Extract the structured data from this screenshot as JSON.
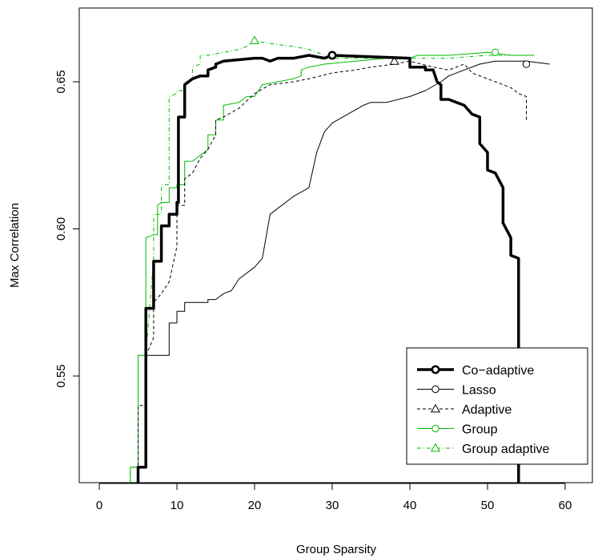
{
  "chart_data": {
    "type": "line",
    "title": "",
    "xlabel": "Group Sparsity",
    "ylabel": "Max Correlation",
    "xlim": [
      0,
      60
    ],
    "ylim": [
      0.515,
      0.677
    ],
    "xticks": [
      0,
      10,
      20,
      30,
      40,
      50,
      60
    ],
    "xtick_labels": [
      "0",
      "10",
      "20",
      "30",
      "40",
      "50",
      "60"
    ],
    "yticks": [
      0.55,
      0.6,
      0.65
    ],
    "ytick_labels": [
      "0.55",
      "0.60",
      "0.65"
    ],
    "grid": false,
    "legend_position": "bottom-right",
    "series": [
      {
        "name": "Co−adaptive",
        "color": "#000000",
        "width": 3.5,
        "dash": "",
        "marker": "circle",
        "marker_at": [
          30,
          0.659
        ],
        "points": [
          [
            5,
            0.505
          ],
          [
            5,
            0.519
          ],
          [
            6,
            0.519
          ],
          [
            6,
            0.573
          ],
          [
            7,
            0.573
          ],
          [
            7,
            0.589
          ],
          [
            8,
            0.589
          ],
          [
            8,
            0.601
          ],
          [
            9,
            0.601
          ],
          [
            9,
            0.605
          ],
          [
            10,
            0.605
          ],
          [
            10,
            0.609
          ],
          [
            10.2,
            0.609
          ],
          [
            10.2,
            0.638
          ],
          [
            11,
            0.638
          ],
          [
            11,
            0.649
          ],
          [
            12,
            0.651
          ],
          [
            13,
            0.652
          ],
          [
            14,
            0.652
          ],
          [
            14,
            0.654
          ],
          [
            15,
            0.655
          ],
          [
            15,
            0.656
          ],
          [
            16,
            0.657
          ],
          [
            20,
            0.658
          ],
          [
            21,
            0.658
          ],
          [
            22,
            0.657
          ],
          [
            23,
            0.658
          ],
          [
            25,
            0.658
          ],
          [
            27,
            0.659
          ],
          [
            29,
            0.658
          ],
          [
            30,
            0.659
          ],
          [
            40,
            0.658
          ],
          [
            40,
            0.655
          ],
          [
            42,
            0.655
          ],
          [
            42,
            0.654
          ],
          [
            43,
            0.654
          ],
          [
            43.5,
            0.65
          ],
          [
            44,
            0.649
          ],
          [
            44,
            0.644
          ],
          [
            45,
            0.644
          ],
          [
            47,
            0.642
          ],
          [
            48,
            0.639
          ],
          [
            49,
            0.638
          ],
          [
            49,
            0.629
          ],
          [
            50,
            0.626
          ],
          [
            50,
            0.62
          ],
          [
            51,
            0.619
          ],
          [
            52,
            0.614
          ],
          [
            52,
            0.602
          ],
          [
            53,
            0.597
          ],
          [
            53,
            0.591
          ],
          [
            54,
            0.59
          ],
          [
            54,
            0.584
          ],
          [
            54,
            0.579
          ],
          [
            54,
            0.505
          ]
        ]
      },
      {
        "name": "Lasso",
        "color": "#000000",
        "width": 1,
        "dash": "",
        "marker": "circle",
        "marker_at": [
          55,
          0.656
        ],
        "points": [
          [
            6,
            0.557
          ],
          [
            9,
            0.557
          ],
          [
            9,
            0.568
          ],
          [
            10,
            0.568
          ],
          [
            10,
            0.572
          ],
          [
            11,
            0.572
          ],
          [
            11,
            0.575
          ],
          [
            14,
            0.575
          ],
          [
            14,
            0.576
          ],
          [
            15,
            0.576
          ],
          [
            16,
            0.578
          ],
          [
            17,
            0.579
          ],
          [
            18,
            0.583
          ],
          [
            20,
            0.587
          ],
          [
            21,
            0.59
          ],
          [
            22,
            0.605
          ],
          [
            25,
            0.611
          ],
          [
            27,
            0.614
          ],
          [
            28,
            0.626
          ],
          [
            29,
            0.633
          ],
          [
            30,
            0.636
          ],
          [
            32,
            0.639
          ],
          [
            34,
            0.642
          ],
          [
            35,
            0.643
          ],
          [
            37,
            0.643
          ],
          [
            40,
            0.645
          ],
          [
            42,
            0.647
          ],
          [
            44,
            0.65
          ],
          [
            45,
            0.652
          ],
          [
            47,
            0.654
          ],
          [
            49,
            0.656
          ],
          [
            51,
            0.657
          ],
          [
            53,
            0.657
          ],
          [
            55,
            0.657
          ],
          [
            58,
            0.656
          ]
        ]
      },
      {
        "name": "Adaptive",
        "color": "#000000",
        "width": 1,
        "dash": "4,3",
        "marker": "triangle",
        "marker_at": [
          38,
          0.657
        ],
        "points": [
          [
            5,
            0.51
          ],
          [
            5,
            0.54
          ],
          [
            6,
            0.54
          ],
          [
            6,
            0.557
          ],
          [
            7,
            0.563
          ],
          [
            7,
            0.575
          ],
          [
            8,
            0.578
          ],
          [
            9,
            0.582
          ],
          [
            10,
            0.594
          ],
          [
            10,
            0.608
          ],
          [
            11,
            0.608
          ],
          [
            11,
            0.617
          ],
          [
            12,
            0.619
          ],
          [
            13,
            0.624
          ],
          [
            14,
            0.627
          ],
          [
            15,
            0.632
          ],
          [
            15,
            0.637
          ],
          [
            16,
            0.638
          ],
          [
            18,
            0.641
          ],
          [
            20,
            0.646
          ],
          [
            22,
            0.649
          ],
          [
            25,
            0.65
          ],
          [
            27,
            0.651
          ],
          [
            30,
            0.653
          ],
          [
            33,
            0.654
          ],
          [
            35,
            0.655
          ],
          [
            38,
            0.656
          ],
          [
            40,
            0.657
          ],
          [
            43,
            0.655
          ],
          [
            45,
            0.654
          ],
          [
            47,
            0.656
          ],
          [
            48,
            0.653
          ],
          [
            50,
            0.651
          ],
          [
            52,
            0.649
          ],
          [
            53,
            0.648
          ],
          [
            54,
            0.646
          ],
          [
            55,
            0.645
          ],
          [
            55,
            0.637
          ]
        ]
      },
      {
        "name": "Group",
        "color": "#00bb00",
        "width": 1,
        "dash": "",
        "marker": "circle",
        "marker_at": [
          51,
          0.66
        ],
        "points": [
          [
            4,
            0.512
          ],
          [
            4,
            0.519
          ],
          [
            5,
            0.519
          ],
          [
            5,
            0.557
          ],
          [
            6,
            0.557
          ],
          [
            6,
            0.597
          ],
          [
            7,
            0.598
          ],
          [
            7.5,
            0.598
          ],
          [
            7.5,
            0.608
          ],
          [
            8,
            0.609
          ],
          [
            9,
            0.609
          ],
          [
            9,
            0.614
          ],
          [
            10,
            0.614
          ],
          [
            10,
            0.615
          ],
          [
            11,
            0.615
          ],
          [
            11,
            0.623
          ],
          [
            12,
            0.623
          ],
          [
            13,
            0.625
          ],
          [
            14,
            0.627
          ],
          [
            14,
            0.632
          ],
          [
            15,
            0.632
          ],
          [
            15,
            0.637
          ],
          [
            16,
            0.637
          ],
          [
            16,
            0.642
          ],
          [
            18,
            0.643
          ],
          [
            19,
            0.645
          ],
          [
            20,
            0.645
          ],
          [
            21,
            0.649
          ],
          [
            23,
            0.65
          ],
          [
            25,
            0.651
          ],
          [
            26,
            0.652
          ],
          [
            26,
            0.654
          ],
          [
            27,
            0.655
          ],
          [
            29,
            0.656
          ],
          [
            33,
            0.657
          ],
          [
            37,
            0.658
          ],
          [
            40,
            0.658
          ],
          [
            41,
            0.659
          ],
          [
            45,
            0.659
          ],
          [
            50,
            0.66
          ],
          [
            53,
            0.659
          ],
          [
            56,
            0.659
          ]
        ]
      },
      {
        "name": "Group adaptive",
        "color": "#00bb00",
        "width": 1,
        "dash": "5,3,1,3",
        "marker": "triangle",
        "marker_at": [
          20,
          0.664
        ],
        "points": [
          [
            4,
            0.513
          ],
          [
            4,
            0.519
          ],
          [
            5,
            0.519
          ],
          [
            5,
            0.557
          ],
          [
            6,
            0.557
          ],
          [
            7,
            0.59
          ],
          [
            7,
            0.605
          ],
          [
            8,
            0.605
          ],
          [
            8,
            0.615
          ],
          [
            9,
            0.615
          ],
          [
            9,
            0.645
          ],
          [
            10,
            0.646
          ],
          [
            10,
            0.647
          ],
          [
            11,
            0.647
          ],
          [
            11,
            0.65
          ],
          [
            12,
            0.651
          ],
          [
            12,
            0.655
          ],
          [
            13,
            0.656
          ],
          [
            13,
            0.659
          ],
          [
            14,
            0.659
          ],
          [
            16,
            0.66
          ],
          [
            18,
            0.661
          ],
          [
            19,
            0.662
          ],
          [
            20,
            0.664
          ],
          [
            22,
            0.663
          ],
          [
            25,
            0.662
          ],
          [
            27,
            0.661
          ],
          [
            30,
            0.658
          ],
          [
            33,
            0.658
          ],
          [
            40,
            0.658
          ],
          [
            43,
            0.658
          ],
          [
            45,
            0.658
          ],
          [
            50,
            0.659
          ],
          [
            53,
            0.659
          ],
          [
            56,
            0.659
          ]
        ]
      }
    ]
  }
}
